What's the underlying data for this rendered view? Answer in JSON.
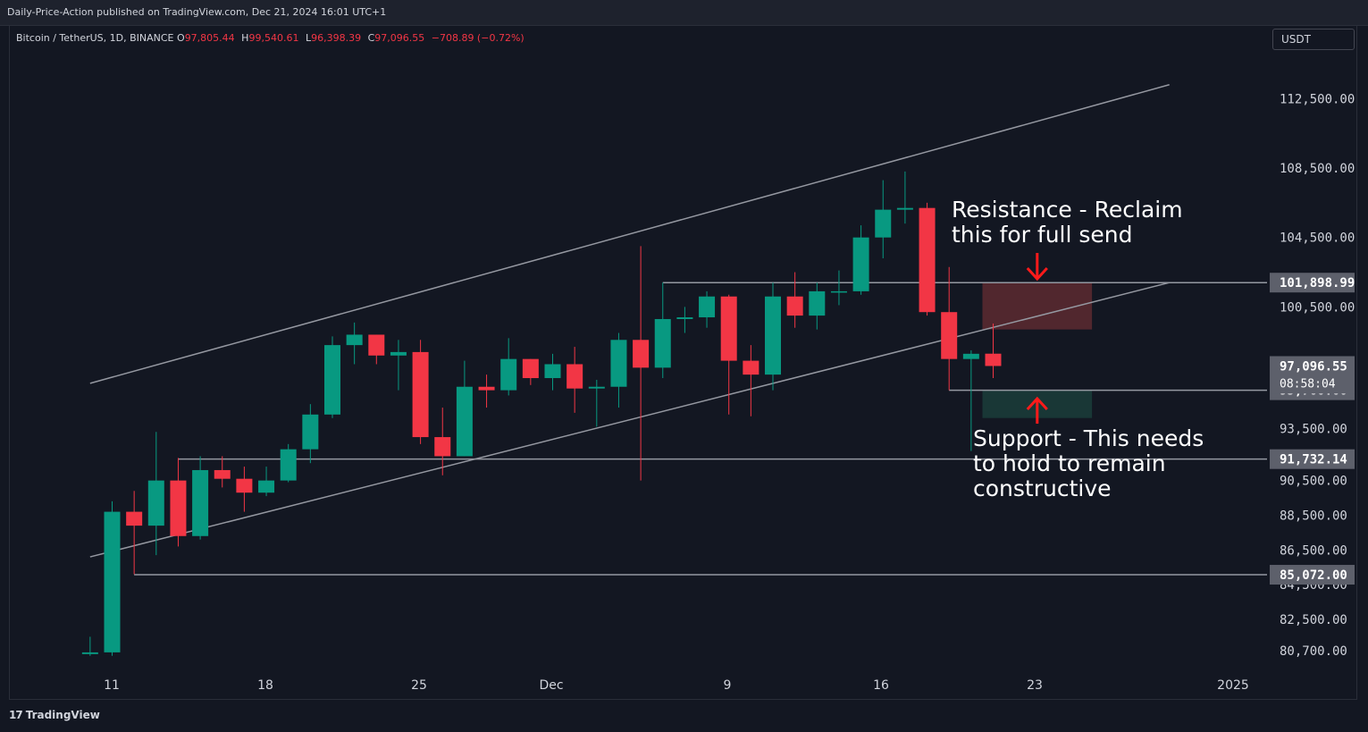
{
  "header": {
    "published": "Daily-Price-Action published on TradingView.com, Dec 21, 2024 16:01 UTC+1"
  },
  "legend": {
    "symbol": "Bitcoin / TetherUS, 1D, BINANCE",
    "o_label": "O",
    "o_value": "97,805.44",
    "h_label": "H",
    "h_value": "99,540.61",
    "l_label": "L",
    "l_value": "96,398.39",
    "c_label": "C",
    "c_value": "97,096.55",
    "change": "−708.89 (−0.72%)"
  },
  "currency": "USDT",
  "footer": {
    "brand": "TradingView",
    "brand_mark": "17"
  },
  "colors": {
    "up": "#089981",
    "down": "#f23645",
    "background": "#131722",
    "line": "#9598a1",
    "resistance_zone": "#5d2a30",
    "support_zone": "#1b3d3a",
    "arrow": "#ff1a1a"
  },
  "chart_data": {
    "type": "candlestick",
    "x_tick_labels": [
      "11",
      "18",
      "25",
      "Dec",
      "9",
      "16",
      "23",
      "2025"
    ],
    "y_tick_labels": [
      "112,500.00",
      "108,500.00",
      "104,500.00",
      "100,500.00",
      "93,500.00",
      "90,500.00",
      "88,500.00",
      "86,500.00",
      "84,500.00",
      "82,500.00",
      "80,700.00"
    ],
    "candles": [
      {
        "date": "2024-11-10",
        "o": 80500,
        "h": 81500,
        "l": 80400,
        "c": 80600
      },
      {
        "date": "2024-11-11",
        "o": 80600,
        "h": 89300,
        "l": 80400,
        "c": 88700
      },
      {
        "date": "2024-11-12",
        "o": 88700,
        "h": 89900,
        "l": 85100,
        "c": 87900
      },
      {
        "date": "2024-11-13",
        "o": 87900,
        "h": 93300,
        "l": 86200,
        "c": 90500
      },
      {
        "date": "2024-11-14",
        "o": 90500,
        "h": 91800,
        "l": 86700,
        "c": 87300
      },
      {
        "date": "2024-11-15",
        "o": 87300,
        "h": 91900,
        "l": 87100,
        "c": 91100
      },
      {
        "date": "2024-11-16",
        "o": 91100,
        "h": 91900,
        "l": 90100,
        "c": 90600
      },
      {
        "date": "2024-11-17",
        "o": 90600,
        "h": 91300,
        "l": 88700,
        "c": 89800
      },
      {
        "date": "2024-11-18",
        "o": 89800,
        "h": 91300,
        "l": 89600,
        "c": 90500
      },
      {
        "date": "2024-11-19",
        "o": 90500,
        "h": 92600,
        "l": 90400,
        "c": 92300
      },
      {
        "date": "2024-11-20",
        "o": 92300,
        "h": 94900,
        "l": 91500,
        "c": 94300
      },
      {
        "date": "2024-11-21",
        "o": 94300,
        "h": 98800,
        "l": 94100,
        "c": 98300
      },
      {
        "date": "2024-11-22",
        "o": 98300,
        "h": 99600,
        "l": 97200,
        "c": 98900
      },
      {
        "date": "2024-11-23",
        "o": 98900,
        "h": 98900,
        "l": 97200,
        "c": 97700
      },
      {
        "date": "2024-11-24",
        "o": 97700,
        "h": 98600,
        "l": 95700,
        "c": 97900
      },
      {
        "date": "2024-11-25",
        "o": 97900,
        "h": 98600,
        "l": 92600,
        "c": 93000
      },
      {
        "date": "2024-11-26",
        "o": 93000,
        "h": 94700,
        "l": 90800,
        "c": 91900
      },
      {
        "date": "2024-11-27",
        "o": 91900,
        "h": 97400,
        "l": 91900,
        "c": 95900
      },
      {
        "date": "2024-11-28",
        "o": 95900,
        "h": 96600,
        "l": 94700,
        "c": 95700
      },
      {
        "date": "2024-11-29",
        "o": 95700,
        "h": 98700,
        "l": 95400,
        "c": 97500
      },
      {
        "date": "2024-11-30",
        "o": 97500,
        "h": 97500,
        "l": 96000,
        "c": 96400
      },
      {
        "date": "2024-12-01",
        "o": 96400,
        "h": 97800,
        "l": 95700,
        "c": 97200
      },
      {
        "date": "2024-12-02",
        "o": 97200,
        "h": 98200,
        "l": 94400,
        "c": 95800
      },
      {
        "date": "2024-12-03",
        "o": 95800,
        "h": 96300,
        "l": 93600,
        "c": 95900
      },
      {
        "date": "2024-12-04",
        "o": 95900,
        "h": 99000,
        "l": 94700,
        "c": 98600
      },
      {
        "date": "2024-12-05",
        "o": 98600,
        "h": 104000,
        "l": 90500,
        "c": 97000
      },
      {
        "date": "2024-12-06",
        "o": 97000,
        "h": 101900,
        "l": 96400,
        "c": 99800
      },
      {
        "date": "2024-12-07",
        "o": 99800,
        "h": 100500,
        "l": 99000,
        "c": 99900
      },
      {
        "date": "2024-12-08",
        "o": 99900,
        "h": 101400,
        "l": 99300,
        "c": 101100
      },
      {
        "date": "2024-12-09",
        "o": 101100,
        "h": 101200,
        "l": 94300,
        "c": 97400
      },
      {
        "date": "2024-12-10",
        "o": 97400,
        "h": 98300,
        "l": 94200,
        "c": 96600
      },
      {
        "date": "2024-12-11",
        "o": 96600,
        "h": 101900,
        "l": 95700,
        "c": 101100
      },
      {
        "date": "2024-12-12",
        "o": 101100,
        "h": 102500,
        "l": 99300,
        "c": 100000
      },
      {
        "date": "2024-12-13",
        "o": 100000,
        "h": 101900,
        "l": 99200,
        "c": 101400
      },
      {
        "date": "2024-12-14",
        "o": 101400,
        "h": 102600,
        "l": 100600,
        "c": 101400
      },
      {
        "date": "2024-12-15",
        "o": 101400,
        "h": 105200,
        "l": 101200,
        "c": 104500
      },
      {
        "date": "2024-12-16",
        "o": 104500,
        "h": 107800,
        "l": 103300,
        "c": 106100
      },
      {
        "date": "2024-12-17",
        "o": 106100,
        "h": 108300,
        "l": 105300,
        "c": 106200
      },
      {
        "date": "2024-12-18",
        "o": 106200,
        "h": 106500,
        "l": 100000,
        "c": 100200
      },
      {
        "date": "2024-12-19",
        "o": 100200,
        "h": 102800,
        "l": 95700,
        "c": 97500
      },
      {
        "date": "2024-12-20",
        "o": 97500,
        "h": 98000,
        "l": 92200,
        "c": 97800
      },
      {
        "date": "2024-12-21",
        "o": 97805.44,
        "h": 99540.61,
        "l": 96398.39,
        "c": 97096.55
      }
    ],
    "horizontal_levels": [
      {
        "price": 101898.99,
        "label": "101,898.99",
        "from": "2024-12-06"
      },
      {
        "price": 95700.0,
        "label": "95,700.00",
        "from": "2024-12-19"
      },
      {
        "price": 91732.14,
        "label": "91,732.14",
        "from": "2024-11-14"
      },
      {
        "price": 85072.0,
        "label": "85,072.00",
        "from": "2024-11-12"
      }
    ],
    "last_price": {
      "label": "97,096.55",
      "countdown": "08:58:04"
    },
    "channel": {
      "upper": [
        {
          "date": "2024-11-10",
          "price": 96100
        },
        {
          "date": "2024-12-29",
          "price": 113300
        }
      ],
      "lower": [
        {
          "date": "2024-11-10",
          "price": 86100
        },
        {
          "date": "2024-12-29",
          "price": 101900
        }
      ]
    },
    "zones": [
      {
        "kind": "resistance",
        "from": "2024-12-21",
        "to": "2024-12-25",
        "top": 101898.99,
        "bottom": 99200
      },
      {
        "kind": "support",
        "from": "2024-12-21",
        "to": "2024-12-25",
        "top": 95700,
        "bottom": 94100
      }
    ],
    "annotations": {
      "resistance_line1": "Resistance - Reclaim",
      "resistance_line2": "this for full send",
      "support_line1": "Support - This needs",
      "support_line2": "to hold to remain",
      "support_line3": "constructive"
    }
  }
}
